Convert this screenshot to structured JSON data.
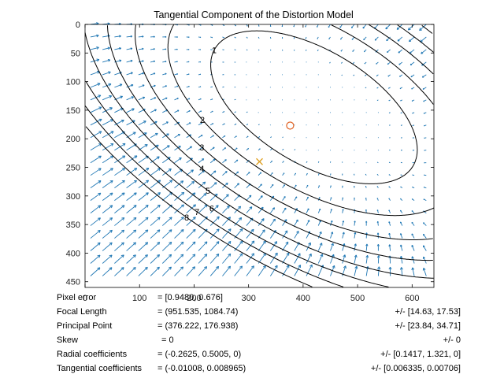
{
  "chart_data": {
    "type": "vector-field-contour",
    "title": "Tangential Component of the Distortion Model",
    "xlabel": "",
    "ylabel": "",
    "xlim": [
      0,
      640
    ],
    "ylim": [
      0,
      460
    ],
    "y_reversed": true,
    "x_ticks": [
      0,
      100,
      200,
      300,
      400,
      500,
      600
    ],
    "y_ticks": [
      0,
      50,
      100,
      150,
      200,
      250,
      300,
      350,
      400,
      450
    ],
    "principal_point": {
      "x": 376.222,
      "y": 176.938,
      "marker": "circle",
      "color": "#e06020"
    },
    "image_center": {
      "x": 320,
      "y": 240,
      "marker": "x",
      "color": "#e0a020"
    },
    "contour_levels": [
      1,
      2,
      3,
      4,
      5,
      6,
      7,
      8
    ],
    "contour_color": "#000000",
    "arrow_color": "#1f77b4",
    "grid": false,
    "legend": "none"
  },
  "info": {
    "rows": [
      {
        "key": "Pixel error",
        "value": "= [0.9480, 0.676]",
        "uncertainty": ""
      },
      {
        "key": "Focal Length",
        "value": "= (951.535, 1084.74)",
        "uncertainty": "+/- [14.63, 17.53]"
      },
      {
        "key": "Principal Point",
        "value": "= (376.222, 176.938)",
        "uncertainty": "+/- [23.84, 34.71]"
      },
      {
        "key": "Skew",
        "value": "= 0",
        "uncertainty": "+/- 0"
      },
      {
        "key": "Radial coefficients",
        "value": "= (-0.2625, 0.5005, 0)",
        "uncertainty": "+/- [0.1417, 1.321, 0]"
      },
      {
        "key": "Tangential coefficients",
        "value": "= (-0.01008, 0.008965)",
        "uncertainty": "+/- [0.006335, 0.00706]"
      }
    ]
  }
}
